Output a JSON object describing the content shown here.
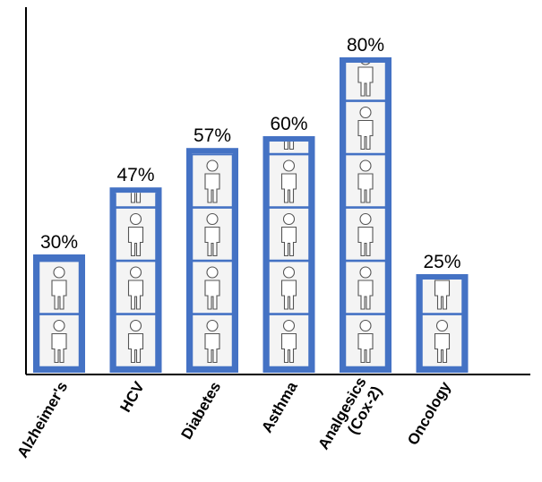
{
  "chart_data": {
    "type": "bar",
    "title": "",
    "xlabel": "",
    "ylabel": "",
    "categories": [
      "Alzheimer's",
      "HCV",
      "Diabetes",
      "Asthma",
      "Analgesics (Cox-2)",
      "Oncology"
    ],
    "category_lines": [
      [
        "Alzheimer's"
      ],
      [
        "HCV"
      ],
      [
        "Diabetes"
      ],
      [
        "Asthma"
      ],
      [
        "Analgesics",
        "(Cox-2)"
      ],
      [
        "Oncology"
      ]
    ],
    "values": [
      30,
      47,
      57,
      60,
      80,
      25
    ],
    "value_labels": [
      "30%",
      "47%",
      "57%",
      "60%",
      "80%",
      "25%"
    ],
    "ylim": [
      0,
      100
    ],
    "grid": false,
    "legend": "none",
    "bar_color": "#4472c4",
    "icon": "person-icon"
  }
}
